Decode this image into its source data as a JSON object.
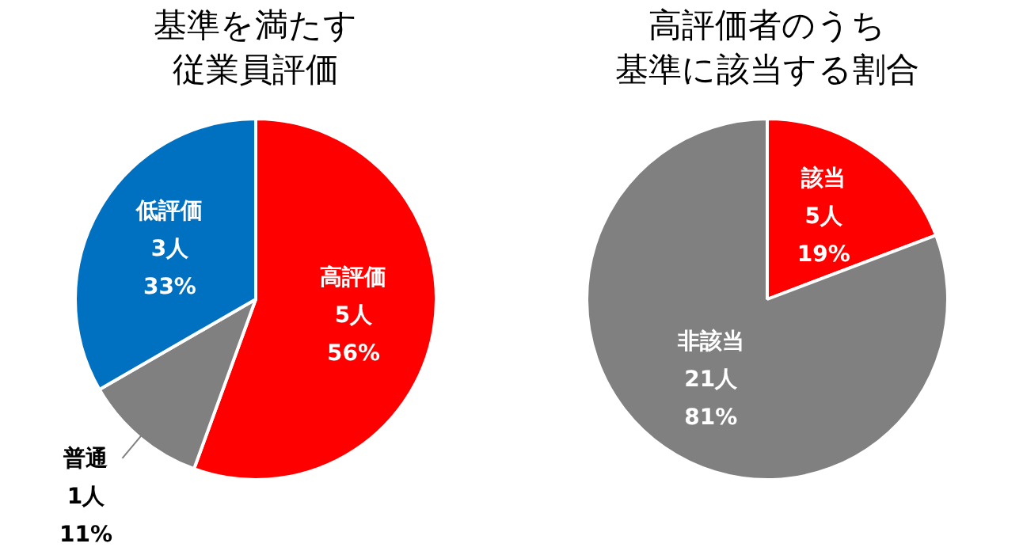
{
  "chart_data": [
    {
      "type": "pie",
      "title": "基準を満たす従業員評価",
      "categories": [
        "高評価",
        "普通",
        "低評価"
      ],
      "values": [
        5,
        1,
        3
      ],
      "value_labels": [
        "5人\n56%",
        "1人\n11%",
        "3人\n33%"
      ],
      "colors": [
        "#ff0000",
        "#808080",
        "#0070c0"
      ]
    },
    {
      "type": "pie",
      "title": "高評価者のうち基準に該当する割合",
      "categories": [
        "該当",
        "非該当"
      ],
      "values": [
        5,
        21
      ],
      "value_labels": [
        "5人\n19%",
        "21人\n81%"
      ],
      "colors": [
        "#ff0000",
        "#808080"
      ]
    }
  ]
}
